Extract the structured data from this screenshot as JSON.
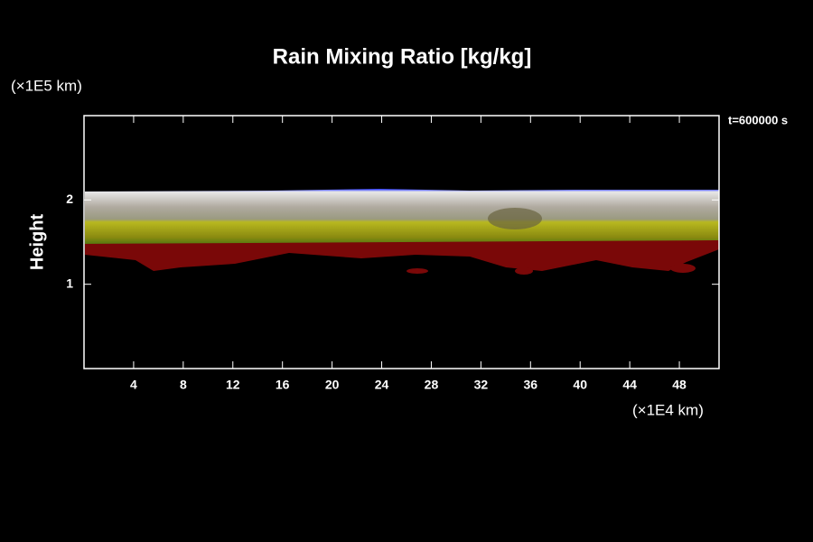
{
  "chart_data": {
    "type": "heatmap",
    "title": "Rain Mixing Ratio [kg/kg]",
    "ylabel": "Height",
    "y_unit": "(×1E5 km)",
    "x_unit": "(×1E4 km)",
    "annotation": "t=600000 s",
    "xlim": [
      0,
      51.2
    ],
    "ylim": [
      0,
      3
    ],
    "xticks": [
      4,
      8,
      12,
      16,
      20,
      24,
      28,
      32,
      36,
      40,
      44,
      48
    ],
    "yticks": [
      1,
      2
    ]
  }
}
